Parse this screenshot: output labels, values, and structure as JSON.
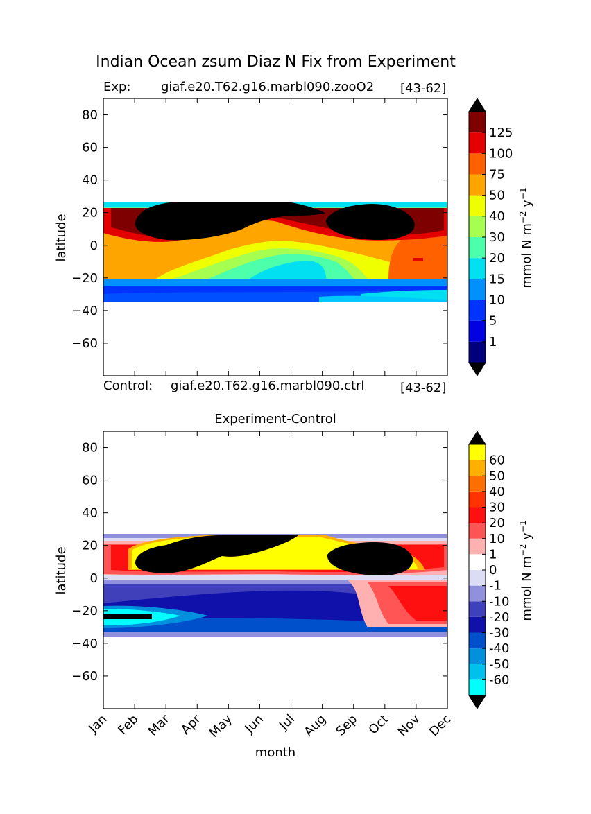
{
  "title": "Indian Ocean zsum Diaz N Fix from Experiment",
  "exp_label": "Exp:",
  "exp_case": "giaf.e20.T62.g16.marbl090.zooO2",
  "exp_years": "[43-62]",
  "ctrl_label": "Control:",
  "ctrl_case": "giaf.e20.T62.g16.marbl090.ctrl",
  "ctrl_years": "[43-62]",
  "chart_data": [
    {
      "type": "heatmap",
      "title": "",
      "xlabel": "",
      "ylabel": "latitude",
      "ylim": [
        -80,
        90
      ],
      "yticks": [
        80,
        60,
        40,
        20,
        0,
        -20,
        -40,
        -60
      ],
      "colorbar": {
        "label": "mmol N m⁻² y⁻¹",
        "tick_labels": [
          "1",
          "5",
          "10",
          "15",
          "20",
          "30",
          "40",
          "50",
          "75",
          "100",
          "125"
        ],
        "colors": [
          "#00007f",
          "#0000e0",
          "#0033ff",
          "#0090ff",
          "#00e0f0",
          "#4dffaa",
          "#a6ff50",
          "#f0ff00",
          "#ffa500",
          "#ff6000",
          "#e50000",
          "#7f0000"
        ],
        "under_color": "#000080",
        "over_color": "#000000",
        "extend": "both"
      },
      "data_extent": {
        "lat": [
          -34,
          27
        ],
        "month": [
          "Jan",
          "Dec"
        ]
      },
      "features": [
        {
          "region": "20N-27N, Jan-Dec",
          "description": "cyan/green strip along northern edge"
        },
        {
          "region": "5N-25N, Feb-Jul",
          "description": "black (>125) core"
        },
        {
          "region": "5N-25N, Sep-Nov",
          "description": "black (>125) core"
        },
        {
          "region": "0-20S",
          "description": "orange 50-75, green/cyan 15-30 in May-Aug"
        },
        {
          "region": "20S-34S",
          "description": "blue 5-15 bands, cyan 20 near 30S"
        }
      ]
    },
    {
      "type": "heatmap",
      "title": "Experiment-Control",
      "xlabel": "month",
      "ylabel": "latitude",
      "ylim": [
        -80,
        90
      ],
      "yticks": [
        80,
        60,
        40,
        20,
        0,
        -20,
        -40,
        -60
      ],
      "xticks": [
        "Jan",
        "Feb",
        "Mar",
        "Apr",
        "May",
        "Jun",
        "Jul",
        "Aug",
        "Sep",
        "Oct",
        "Nov",
        "Dec"
      ],
      "colorbar": {
        "label": "mmol N m⁻² y⁻¹",
        "tick_labels": [
          "-60",
          "-50",
          "-40",
          "-30",
          "-20",
          "-10",
          "-1",
          "0",
          "1",
          "10",
          "20",
          "30",
          "40",
          "50",
          "60"
        ],
        "colors": [
          "#00ffff",
          "#00c0ee",
          "#0090dd",
          "#0050cc",
          "#1010aa",
          "#4040bb",
          "#9090dd",
          "#dcdcf5",
          "#ffffff",
          "#ffb0b0",
          "#ff5555",
          "#ff1010",
          "#ff3300",
          "#ff7000",
          "#ffb000",
          "#ffff00"
        ],
        "under_color": "#00ffff",
        "over_color": "#000000",
        "extend": "both"
      },
      "data_extent": {
        "lat": [
          -34,
          27
        ],
        "month": [
          "Jan",
          "Dec"
        ]
      },
      "features": [
        {
          "region": "5N-27N, Feb-Jul",
          "description": "black (>60) core with yellow/orange rim"
        },
        {
          "region": "2N-25N, Sep-Nov",
          "description": "black (>60) core"
        },
        {
          "region": "0-20S",
          "description": "blue -10 to -30"
        },
        {
          "region": "0-20S, Sep-Dec",
          "description": "red/pink 10-30"
        },
        {
          "region": "20S-30S, Jan-Mar",
          "description": "cyan (<-60) and black streak"
        }
      ]
    }
  ]
}
